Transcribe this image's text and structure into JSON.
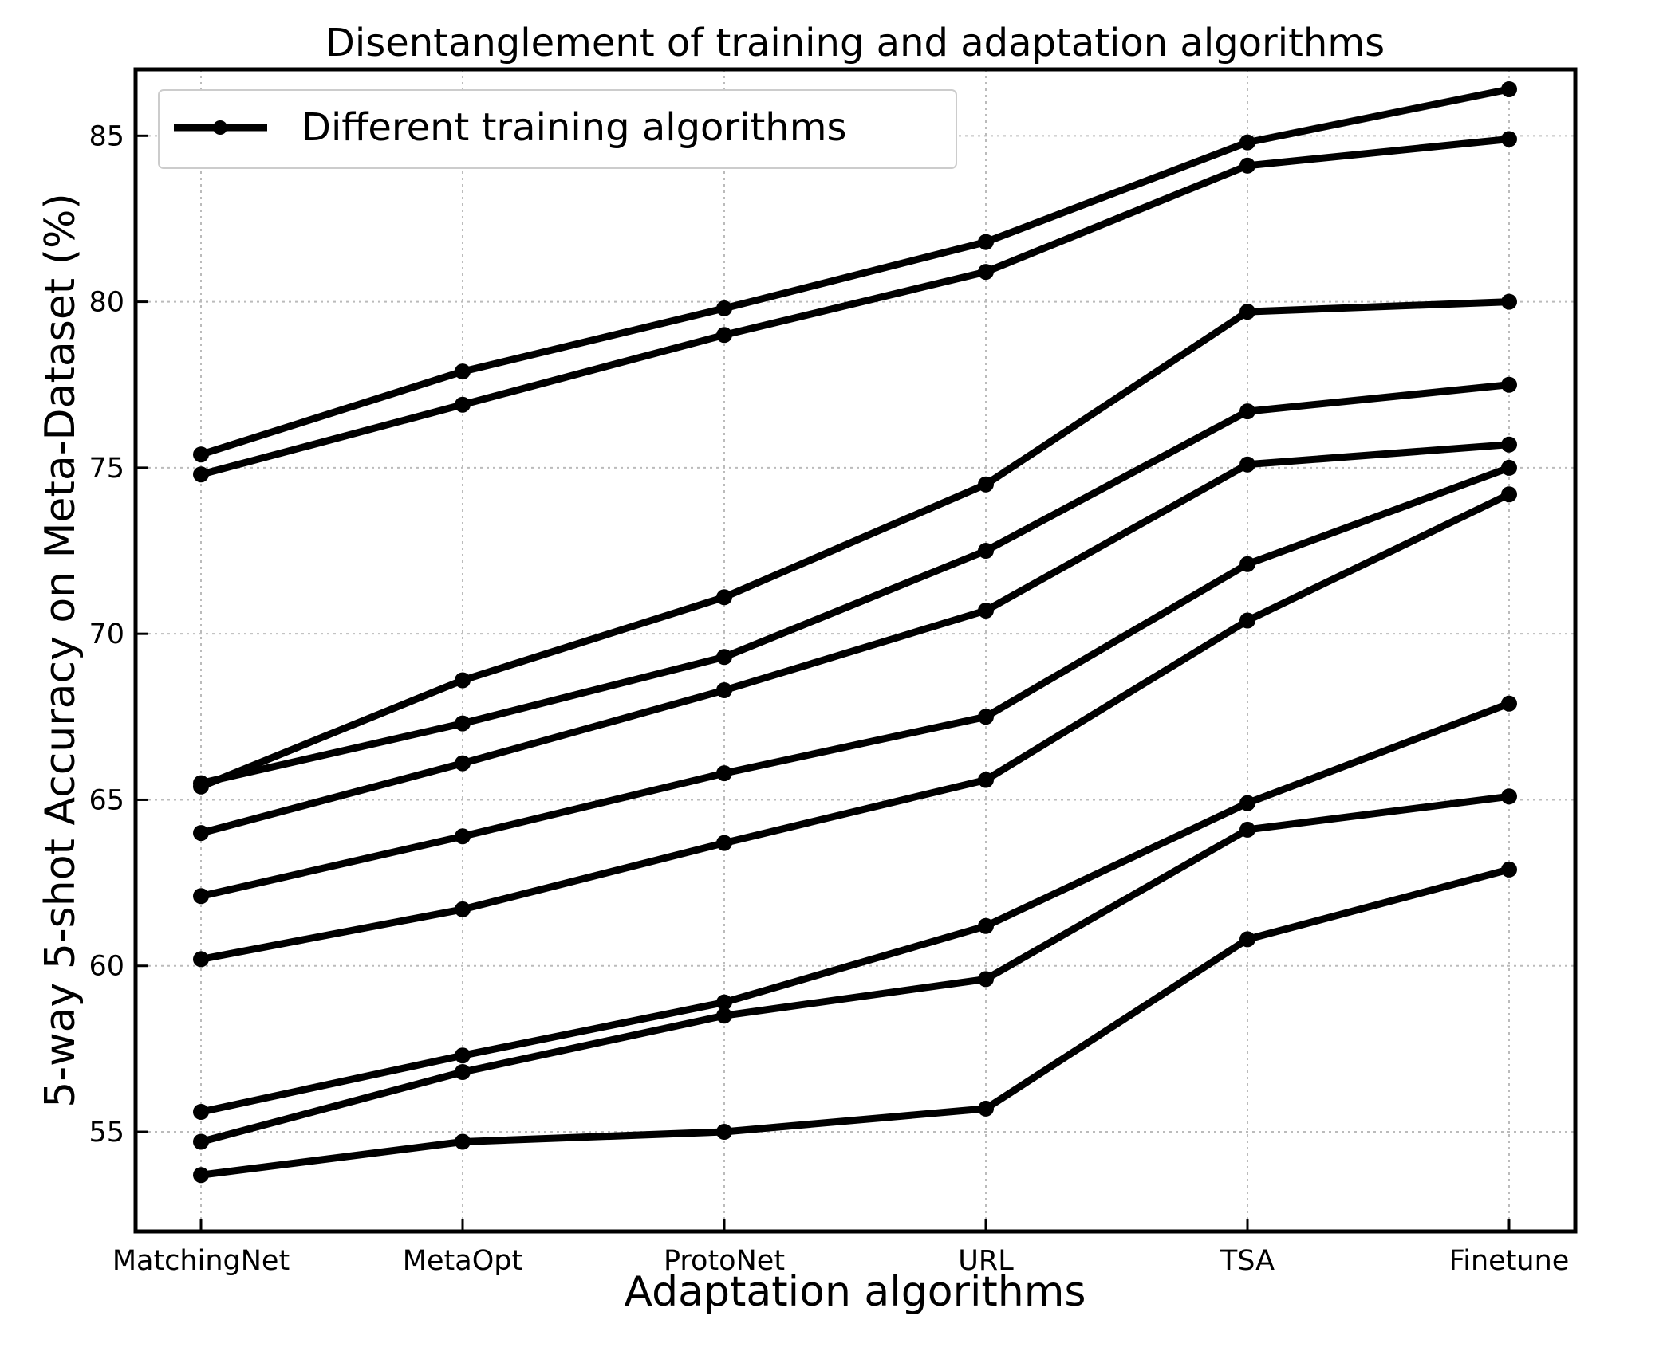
{
  "chart_data": {
    "type": "line",
    "title": "Disentanglement of training and adaptation algorithms",
    "xlabel": "Adaptation algorithms",
    "ylabel": "5-way 5-shot Accuracy on Meta-Dataset (%)",
    "categories": [
      "MatchingNet",
      "MetaOpt",
      "ProtoNet",
      "URL",
      "TSA",
      "Finetune"
    ],
    "ylim": [
      52,
      87
    ],
    "yticks": [
      "55",
      "60",
      "65",
      "70",
      "75",
      "80",
      "85"
    ],
    "grid": true,
    "legend": {
      "position": "top-left",
      "label": "Different training algorithms"
    },
    "colors": {
      "line": "#000000",
      "grid": "#bbbbbb"
    },
    "series": [
      {
        "values": [
          75.4,
          77.9,
          79.8,
          81.8,
          84.8,
          86.4
        ]
      },
      {
        "values": [
          74.8,
          76.9,
          79.0,
          80.9,
          84.1,
          84.9
        ]
      },
      {
        "values": [
          65.4,
          68.6,
          71.1,
          74.5,
          79.7,
          80.0
        ]
      },
      {
        "values": [
          65.5,
          67.3,
          69.3,
          72.5,
          76.7,
          77.5
        ]
      },
      {
        "values": [
          64.0,
          66.1,
          68.3,
          70.7,
          75.1,
          75.7
        ]
      },
      {
        "values": [
          62.1,
          63.9,
          65.8,
          67.5,
          72.1,
          75.0
        ]
      },
      {
        "values": [
          60.2,
          61.7,
          63.7,
          65.6,
          70.4,
          74.2
        ]
      },
      {
        "values": [
          55.6,
          57.3,
          58.9,
          61.2,
          64.9,
          67.9
        ]
      },
      {
        "values": [
          54.7,
          56.8,
          58.5,
          59.6,
          64.1,
          65.1
        ]
      },
      {
        "values": [
          53.7,
          54.7,
          55.0,
          55.7,
          60.8,
          62.9
        ]
      }
    ]
  }
}
